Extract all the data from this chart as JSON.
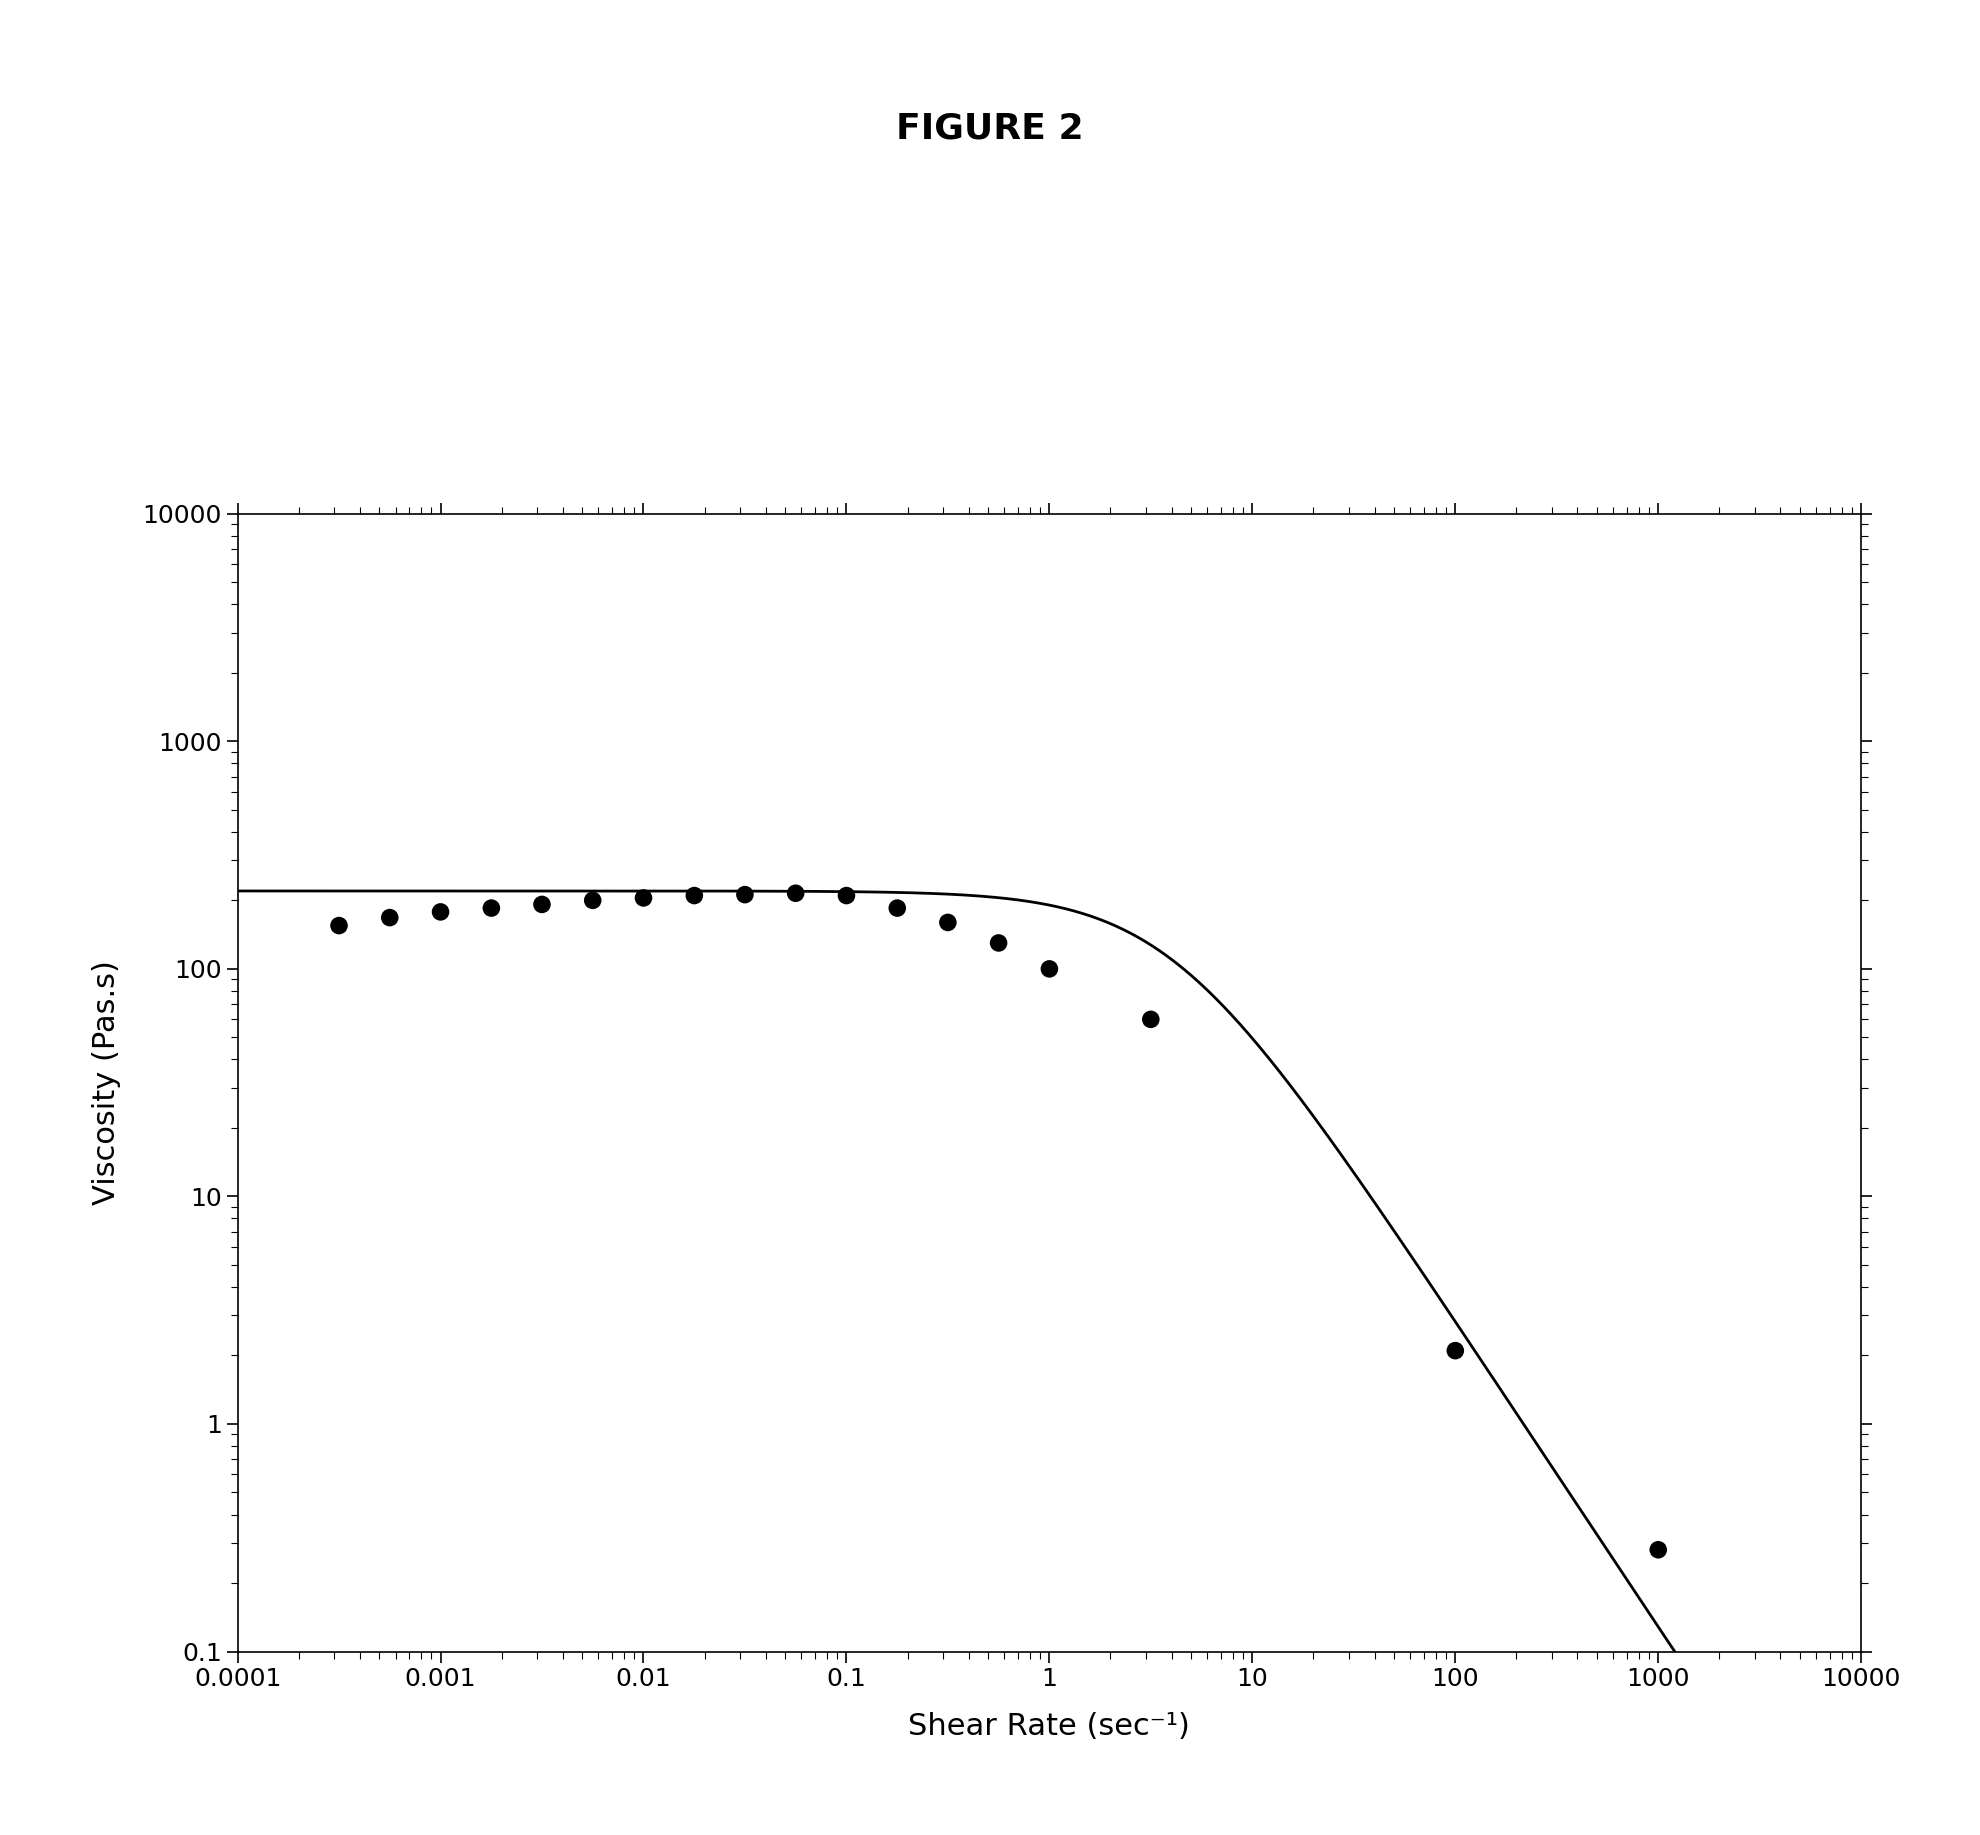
{
  "title": "FIGURE 2",
  "xlabel": "Shear Rate (sec⁻¹)",
  "ylabel": "Viscosity (Pas.s)",
  "xlim": [
    0.0001,
    10000
  ],
  "ylim": [
    0.1,
    10000
  ],
  "background_color": "#ffffff",
  "scatter_x": [
    0.000316,
    0.000562,
    0.001,
    0.00178,
    0.00316,
    0.00562,
    0.01,
    0.0178,
    0.0316,
    0.0562,
    0.1,
    0.178,
    0.316,
    0.562,
    1.0,
    3.16,
    100,
    1000
  ],
  "scatter_y": [
    155,
    168,
    178,
    185,
    192,
    200,
    205,
    210,
    212,
    215,
    210,
    185,
    160,
    130,
    100,
    60,
    2.1,
    0.28
  ],
  "scatter_color": "#000000",
  "scatter_size": 160,
  "curve_color": "#000000",
  "curve_linewidth": 2.0,
  "title_fontsize": 26,
  "title_fontweight": "bold",
  "axis_label_fontsize": 22,
  "tick_fontsize": 18,
  "eta0": 220.0,
  "eta_inf": 0.001,
  "lam": 0.25,
  "n": 1.35
}
